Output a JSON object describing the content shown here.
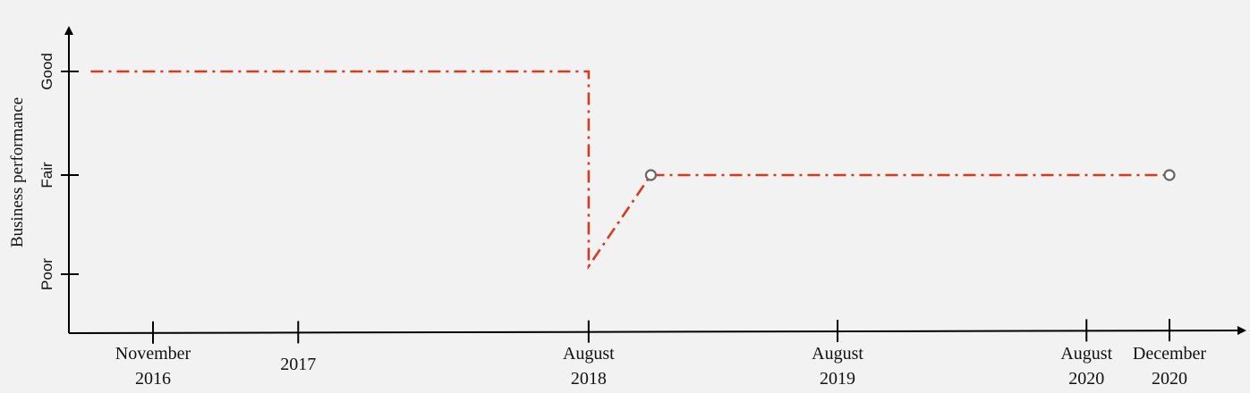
{
  "chart_data": {
    "type": "line",
    "title": "",
    "xlabel": "",
    "ylabel": "Business performance",
    "y_categories": [
      "Poor",
      "Fair",
      "Good"
    ],
    "x_ticks": [
      {
        "date": "2016-11",
        "line1": "November",
        "line2": "2016"
      },
      {
        "date": "2017-06",
        "line1": "2017",
        "line2": ""
      },
      {
        "date": "2018-08",
        "line1": "August",
        "line2": "2018"
      },
      {
        "date": "2019-08",
        "line1": "August",
        "line2": "2019"
      },
      {
        "date": "2020-08",
        "line1": "August",
        "line2": "2020"
      },
      {
        "date": "2020-12",
        "line1": "December",
        "line2": "2020"
      }
    ],
    "series": [
      {
        "color": "#d9391c",
        "line_style": "dash-dot",
        "points": [
          {
            "x": "2016-08",
            "y": "Good"
          },
          {
            "x": "2018-08",
            "y": "Good"
          },
          {
            "x": "2018-08",
            "y": "Poor"
          },
          {
            "x": "2018-11",
            "y": "Fair",
            "marker": "open-circle"
          },
          {
            "x": "2020-12",
            "y": "Fair",
            "marker": "open-circle"
          }
        ]
      }
    ],
    "grid": false,
    "legend": "none"
  }
}
